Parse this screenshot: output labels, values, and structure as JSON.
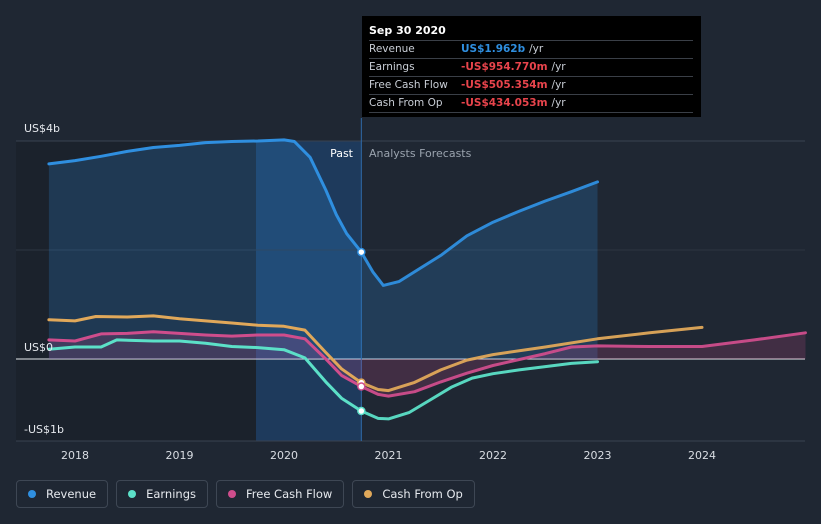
{
  "tooltip": {
    "date": "Sep 30 2020",
    "rows": [
      {
        "label": "Revenue",
        "value": "US$1.962b",
        "unit": "/yr",
        "color": "#2f8fe0"
      },
      {
        "label": "Earnings",
        "value": "-US$954.770m",
        "unit": "/yr",
        "color": "#e8444c"
      },
      {
        "label": "Free Cash Flow",
        "value": "-US$505.354m",
        "unit": "/yr",
        "color": "#e8444c"
      },
      {
        "label": "Cash From Op",
        "value": "-US$434.053m",
        "unit": "/yr",
        "color": "#e8444c"
      }
    ]
  },
  "legend": [
    {
      "label": "Revenue",
      "color": "#2f8fe0"
    },
    {
      "label": "Earnings",
      "color": "#5ce0c8"
    },
    {
      "label": "Free Cash Flow",
      "color": "#cf4d8c"
    },
    {
      "label": "Cash From Op",
      "color": "#e0a85a"
    }
  ],
  "chart_data": {
    "type": "line",
    "segments": {
      "past": "Past",
      "forecast": "Analysts Forecasts",
      "divider_x": 2020.74
    },
    "y_labels": [
      {
        "value": 4,
        "text": "US$4b"
      },
      {
        "value": 0,
        "text": "US$0"
      },
      {
        "value": -1,
        "text": "-US$1b"
      }
    ],
    "x_ticks": [
      2018,
      2019,
      2020,
      2021,
      2022,
      2023,
      2024
    ],
    "xlim": [
      2017.65,
      2024.99
    ],
    "ylim": [
      -1.3,
      4.2
    ],
    "units": "US$ billions",
    "series": [
      {
        "name": "Revenue",
        "color": "#2f8fe0",
        "fill": true,
        "past": [
          [
            2017.75,
            3.58
          ],
          [
            2018.0,
            3.64
          ],
          [
            2018.25,
            3.72
          ],
          [
            2018.5,
            3.81
          ],
          [
            2018.75,
            3.88
          ],
          [
            2019.0,
            3.92
          ],
          [
            2019.25,
            3.97
          ],
          [
            2019.5,
            3.99
          ],
          [
            2019.75,
            4.0
          ],
          [
            2020.0,
            4.02
          ],
          [
            2020.1,
            3.99
          ],
          [
            2020.25,
            3.7
          ],
          [
            2020.4,
            3.1
          ],
          [
            2020.5,
            2.65
          ],
          [
            2020.6,
            2.3
          ],
          [
            2020.74,
            1.962
          ]
        ],
        "forecast": [
          [
            2020.74,
            1.962
          ],
          [
            2020.85,
            1.6
          ],
          [
            2020.95,
            1.35
          ],
          [
            2021.1,
            1.42
          ],
          [
            2021.3,
            1.66
          ],
          [
            2021.5,
            1.9
          ],
          [
            2021.75,
            2.26
          ],
          [
            2022.0,
            2.51
          ],
          [
            2022.25,
            2.71
          ],
          [
            2022.5,
            2.9
          ],
          [
            2022.75,
            3.07
          ],
          [
            2023.0,
            3.25
          ]
        ]
      },
      {
        "name": "Earnings",
        "color": "#5ce0c8",
        "fill": false,
        "past": [
          [
            2017.75,
            0.18
          ],
          [
            2018.0,
            0.22
          ],
          [
            2018.25,
            0.22
          ],
          [
            2018.4,
            0.35
          ],
          [
            2018.75,
            0.33
          ],
          [
            2019.0,
            0.33
          ],
          [
            2019.25,
            0.29
          ],
          [
            2019.5,
            0.23
          ],
          [
            2019.75,
            0.21
          ],
          [
            2020.0,
            0.17
          ],
          [
            2020.2,
            0.02
          ],
          [
            2020.4,
            -0.42
          ],
          [
            2020.55,
            -0.72
          ],
          [
            2020.74,
            -0.955
          ]
        ],
        "forecast": [
          [
            2020.74,
            -0.955
          ],
          [
            2020.9,
            -1.09
          ],
          [
            2021.0,
            -1.1
          ],
          [
            2021.2,
            -0.98
          ],
          [
            2021.4,
            -0.75
          ],
          [
            2021.6,
            -0.52
          ],
          [
            2021.8,
            -0.35
          ],
          [
            2022.0,
            -0.27
          ],
          [
            2022.25,
            -0.2
          ],
          [
            2022.5,
            -0.14
          ],
          [
            2022.75,
            -0.08
          ],
          [
            2023.0,
            -0.05
          ]
        ]
      },
      {
        "name": "Free Cash Flow",
        "color": "#cf4d8c",
        "fill": false,
        "past": [
          [
            2017.75,
            0.35
          ],
          [
            2018.0,
            0.33
          ],
          [
            2018.25,
            0.46
          ],
          [
            2018.5,
            0.47
          ],
          [
            2018.75,
            0.5
          ],
          [
            2019.0,
            0.47
          ],
          [
            2019.25,
            0.44
          ],
          [
            2019.5,
            0.42
          ],
          [
            2019.75,
            0.44
          ],
          [
            2020.0,
            0.44
          ],
          [
            2020.2,
            0.37
          ],
          [
            2020.4,
            0.0
          ],
          [
            2020.55,
            -0.3
          ],
          [
            2020.74,
            -0.505
          ]
        ],
        "forecast": [
          [
            2020.74,
            -0.505
          ],
          [
            2020.9,
            -0.65
          ],
          [
            2021.0,
            -0.68
          ],
          [
            2021.25,
            -0.6
          ],
          [
            2021.5,
            -0.42
          ],
          [
            2021.75,
            -0.26
          ],
          [
            2022.0,
            -0.12
          ],
          [
            2022.5,
            0.1
          ],
          [
            2022.75,
            0.22
          ],
          [
            2023.0,
            0.24
          ],
          [
            2023.5,
            0.23
          ],
          [
            2024.0,
            0.23
          ],
          [
            2024.5,
            0.35
          ],
          [
            2024.99,
            0.48
          ]
        ]
      },
      {
        "name": "Cash From Op",
        "color": "#e0a85a",
        "fill": false,
        "past": [
          [
            2017.75,
            0.72
          ],
          [
            2018.0,
            0.7
          ],
          [
            2018.2,
            0.78
          ],
          [
            2018.5,
            0.77
          ],
          [
            2018.75,
            0.79
          ],
          [
            2019.0,
            0.74
          ],
          [
            2019.25,
            0.7
          ],
          [
            2019.5,
            0.66
          ],
          [
            2019.75,
            0.62
          ],
          [
            2020.0,
            0.6
          ],
          [
            2020.2,
            0.53
          ],
          [
            2020.4,
            0.12
          ],
          [
            2020.55,
            -0.18
          ],
          [
            2020.74,
            -0.434
          ]
        ],
        "forecast": [
          [
            2020.74,
            -0.434
          ],
          [
            2020.9,
            -0.56
          ],
          [
            2021.0,
            -0.58
          ],
          [
            2021.25,
            -0.43
          ],
          [
            2021.5,
            -0.2
          ],
          [
            2021.75,
            -0.02
          ],
          [
            2022.0,
            0.08
          ],
          [
            2022.5,
            0.22
          ],
          [
            2023.0,
            0.37
          ],
          [
            2023.5,
            0.48
          ],
          [
            2024.0,
            0.58
          ]
        ]
      }
    ]
  }
}
